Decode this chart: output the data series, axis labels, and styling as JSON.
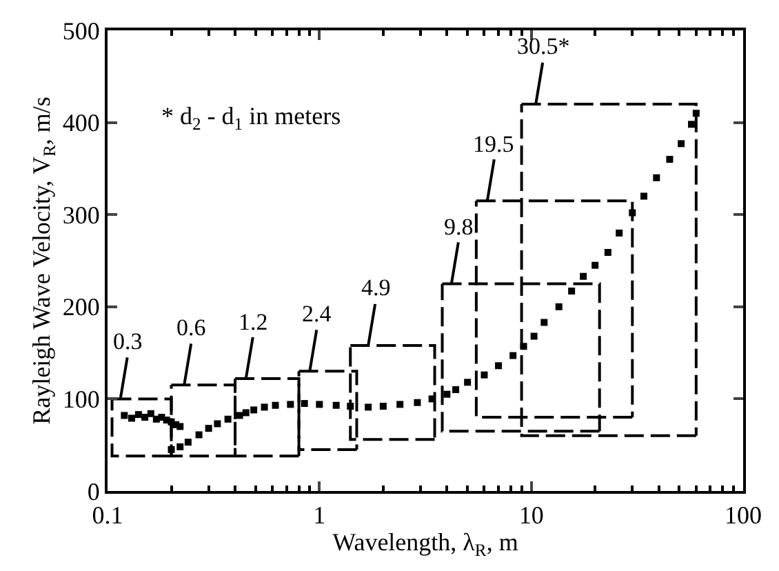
{
  "chart_data": {
    "type": "scatter",
    "xlabel": "Wavelength, λ$_{R}$, m",
    "ylabel": "Rayleigh Wave Velocity, V$_{R}$, m/s",
    "log": "x",
    "xlim": [
      0.1,
      100
    ],
    "xticks": [
      0.1,
      1,
      10,
      100
    ],
    "ylim": [
      0,
      500
    ],
    "yticks": [
      0,
      100,
      200,
      300,
      400,
      500
    ],
    "marker": "square",
    "series": [
      {
        "color": "#000000",
        "x": [
          0.12,
          0.13,
          0.14,
          0.15,
          0.16,
          0.17,
          0.18,
          0.19,
          0.2,
          0.21,
          0.22,
          0.2,
          0.22,
          0.24,
          0.27,
          0.3,
          0.33,
          0.37,
          0.42,
          0.45,
          0.49,
          0.55,
          0.62,
          0.73,
          0.85,
          1.0,
          1.2,
          1.4,
          1.7,
          2.0,
          2.4,
          2.9,
          3.4,
          4.0,
          4.4,
          5.0,
          6.0,
          7.0,
          8.2,
          9.2,
          10.3,
          11.5,
          13.5,
          15.5,
          17.6,
          20,
          23,
          26,
          30,
          34,
          39,
          45,
          51,
          57,
          60
        ],
        "values": [
          82,
          79,
          83,
          80,
          84,
          78,
          80,
          77,
          75,
          72,
          70,
          45,
          48,
          53,
          61,
          68,
          73,
          78,
          82,
          85,
          88,
          91,
          93,
          94,
          95,
          94,
          93,
          92,
          91,
          92,
          94,
          96,
          100,
          105,
          110,
          118,
          126,
          136,
          147,
          157,
          168,
          183,
          200,
          217,
          233,
          245,
          259,
          280,
          302,
          320,
          340,
          360,
          377,
          398,
          410
        ]
      },
      {
        "type": "line",
        "line_style": "dashed",
        "marker": "none",
        "color": "#000000",
        "x": [
          0.105,
          0.2,
          0.2
        ],
        "values": [
          100,
          100,
          38
        ]
      },
      {
        "type": "line",
        "line_style": "dashed",
        "marker": "none",
        "color": "#000000",
        "x": [
          0.2,
          0.105,
          0.105
        ],
        "values": [
          38,
          38,
          100
        ]
      },
      {
        "type": "line",
        "line_style": "dashed",
        "marker": "none",
        "color": "#000000",
        "x": [
          0.2,
          0.4,
          0.4
        ],
        "values": [
          115,
          115,
          38
        ]
      },
      {
        "type": "line",
        "line_style": "dashed",
        "marker": "none",
        "color": "#000000",
        "x": [
          0.4,
          0.2,
          0.2
        ],
        "values": [
          38,
          38,
          115
        ]
      },
      {
        "type": "line",
        "line_style": "dashed",
        "marker": "none",
        "color": "#000000",
        "x": [
          0.4,
          0.8,
          0.8
        ],
        "values": [
          122,
          122,
          38
        ]
      },
      {
        "type": "line",
        "line_style": "dashed",
        "marker": "none",
        "color": "#000000",
        "x": [
          0.8,
          0.4,
          0.4
        ],
        "values": [
          38,
          38,
          122
        ]
      },
      {
        "type": "line",
        "line_style": "dashed",
        "marker": "none",
        "color": "#000000",
        "x": [
          0.8,
          1.5,
          1.5
        ],
        "values": [
          130,
          130,
          45
        ]
      },
      {
        "type": "line",
        "line_style": "dashed",
        "marker": "none",
        "color": "#000000",
        "x": [
          1.5,
          0.8,
          0.8
        ],
        "values": [
          45,
          45,
          130
        ]
      },
      {
        "type": "line",
        "line_style": "dashed",
        "marker": "none",
        "color": "#000000",
        "x": [
          1.4,
          3.5,
          3.5
        ],
        "values": [
          158,
          158,
          56
        ]
      },
      {
        "type": "line",
        "line_style": "dashed",
        "marker": "none",
        "color": "#000000",
        "x": [
          3.5,
          1.4,
          1.4
        ],
        "values": [
          56,
          56,
          158
        ]
      },
      {
        "type": "line",
        "line_style": "dashed",
        "marker": "none",
        "color": "#000000",
        "x": [
          3.8,
          21,
          21
        ],
        "values": [
          225,
          225,
          65
        ]
      },
      {
        "type": "line",
        "line_style": "dashed",
        "marker": "none",
        "color": "#000000",
        "x": [
          21,
          3.8,
          3.8
        ],
        "values": [
          65,
          65,
          225
        ]
      },
      {
        "type": "line",
        "line_style": "dashed",
        "marker": "none",
        "color": "#000000",
        "x": [
          5.5,
          30,
          30
        ],
        "values": [
          315,
          315,
          80
        ]
      },
      {
        "type": "line",
        "line_style": "dashed",
        "marker": "none",
        "color": "#000000",
        "x": [
          30,
          5.5,
          5.5
        ],
        "values": [
          80,
          80,
          315
        ]
      },
      {
        "type": "line",
        "line_style": "dashed",
        "marker": "none",
        "color": "#000000",
        "x": [
          9,
          60,
          60
        ],
        "values": [
          420,
          420,
          60
        ]
      },
      {
        "type": "line",
        "line_style": "dashed",
        "marker": "none",
        "color": "#000000",
        "x": [
          60,
          9,
          9
        ],
        "values": [
          60,
          60,
          420
        ]
      }
    ],
    "annotations": [
      {
        "text": "0.3",
        "x": 0.115,
        "y": 100
      },
      {
        "text": "0.6",
        "x": 0.23,
        "y": 115
      },
      {
        "text": "1.2",
        "x": 0.45,
        "y": 122
      },
      {
        "text": "2.4",
        "x": 0.9,
        "y": 130
      },
      {
        "text": "4.9",
        "x": 1.7,
        "y": 158
      },
      {
        "text": "9.8",
        "x": 4.2,
        "y": 225
      },
      {
        "text": "19.5",
        "x": 6.2,
        "y": 315
      },
      {
        "text": "30.5*",
        "x": 10.5,
        "y": 420
      },
      "* d$_{2}$ - d$_{1}$ in meters"
    ]
  }
}
